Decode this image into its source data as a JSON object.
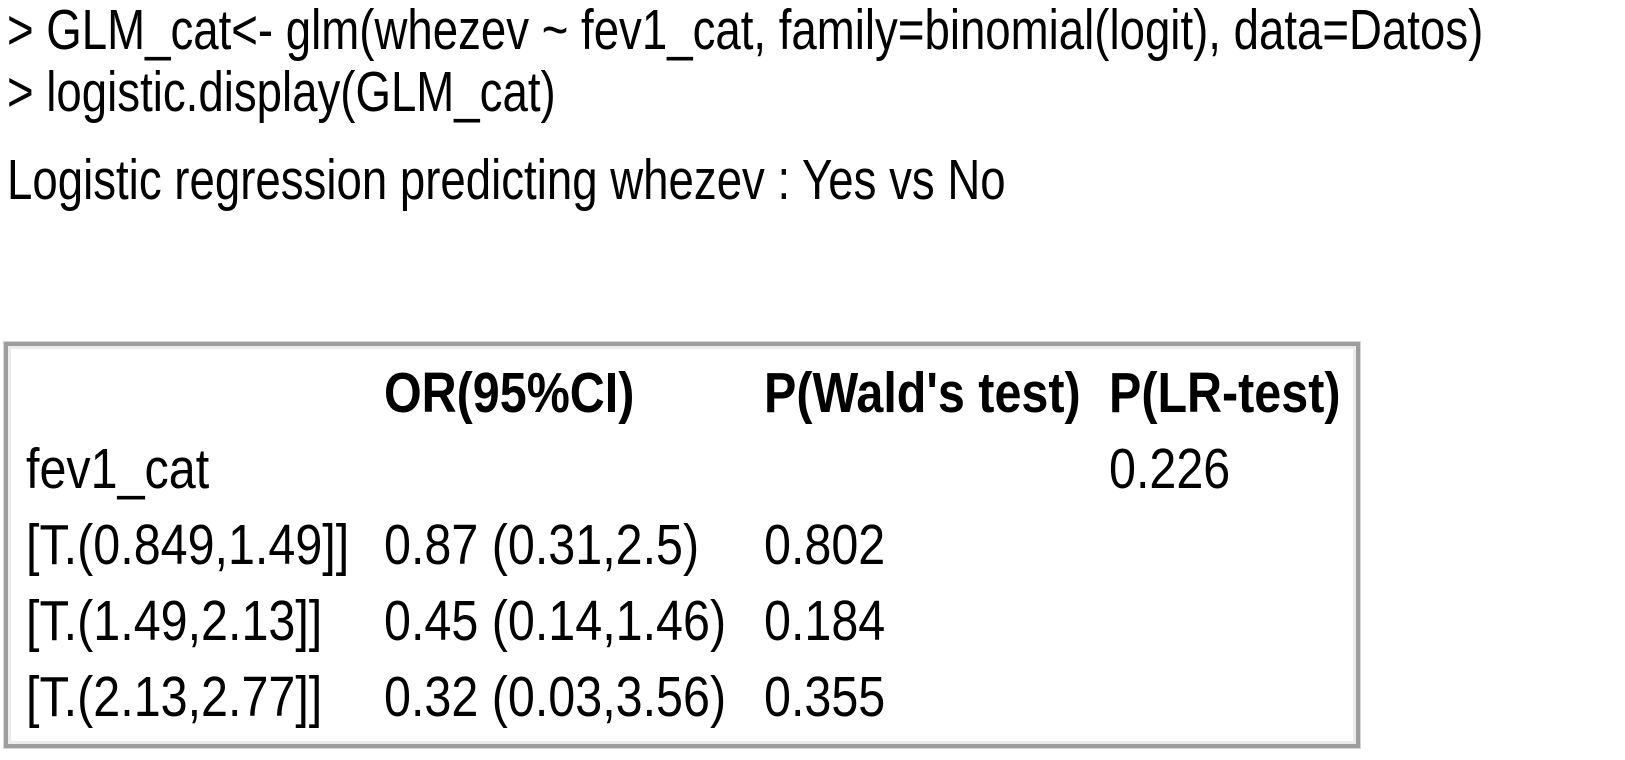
{
  "console": {
    "lines": [
      "> GLM_cat<- glm(whezev ~ fev1_cat, family=binomial(logit), data=Datos)",
      "> logistic.display(GLM_cat)"
    ],
    "caption": "Logistic regression predicting whezev : Yes vs No"
  },
  "results_table": {
    "headers": {
      "label": "",
      "or": "OR(95%CI)",
      "wald": "P(Wald's test)",
      "lr": "P(LR-test)"
    },
    "rows": [
      {
        "label": "fev1_cat",
        "or": "",
        "wald": "",
        "lr": "0.226"
      },
      {
        "label": "[T.(0.849,1.49]]",
        "or": "0.87 (0.31,2.5)",
        "wald": "0.802",
        "lr": ""
      },
      {
        "label": "[T.(1.49,2.13]]",
        "or": "0.45 (0.14,1.46)",
        "wald": "0.184",
        "lr": ""
      },
      {
        "label": "[T.(2.13,2.77]]",
        "or": "0.32 (0.03,3.56)",
        "wald": "0.355",
        "lr": ""
      }
    ]
  },
  "colors": {
    "text": "#000000",
    "background": "#ffffff",
    "panel_border_outer": "#9d9d9d",
    "panel_border_inner": "#ececec"
  }
}
